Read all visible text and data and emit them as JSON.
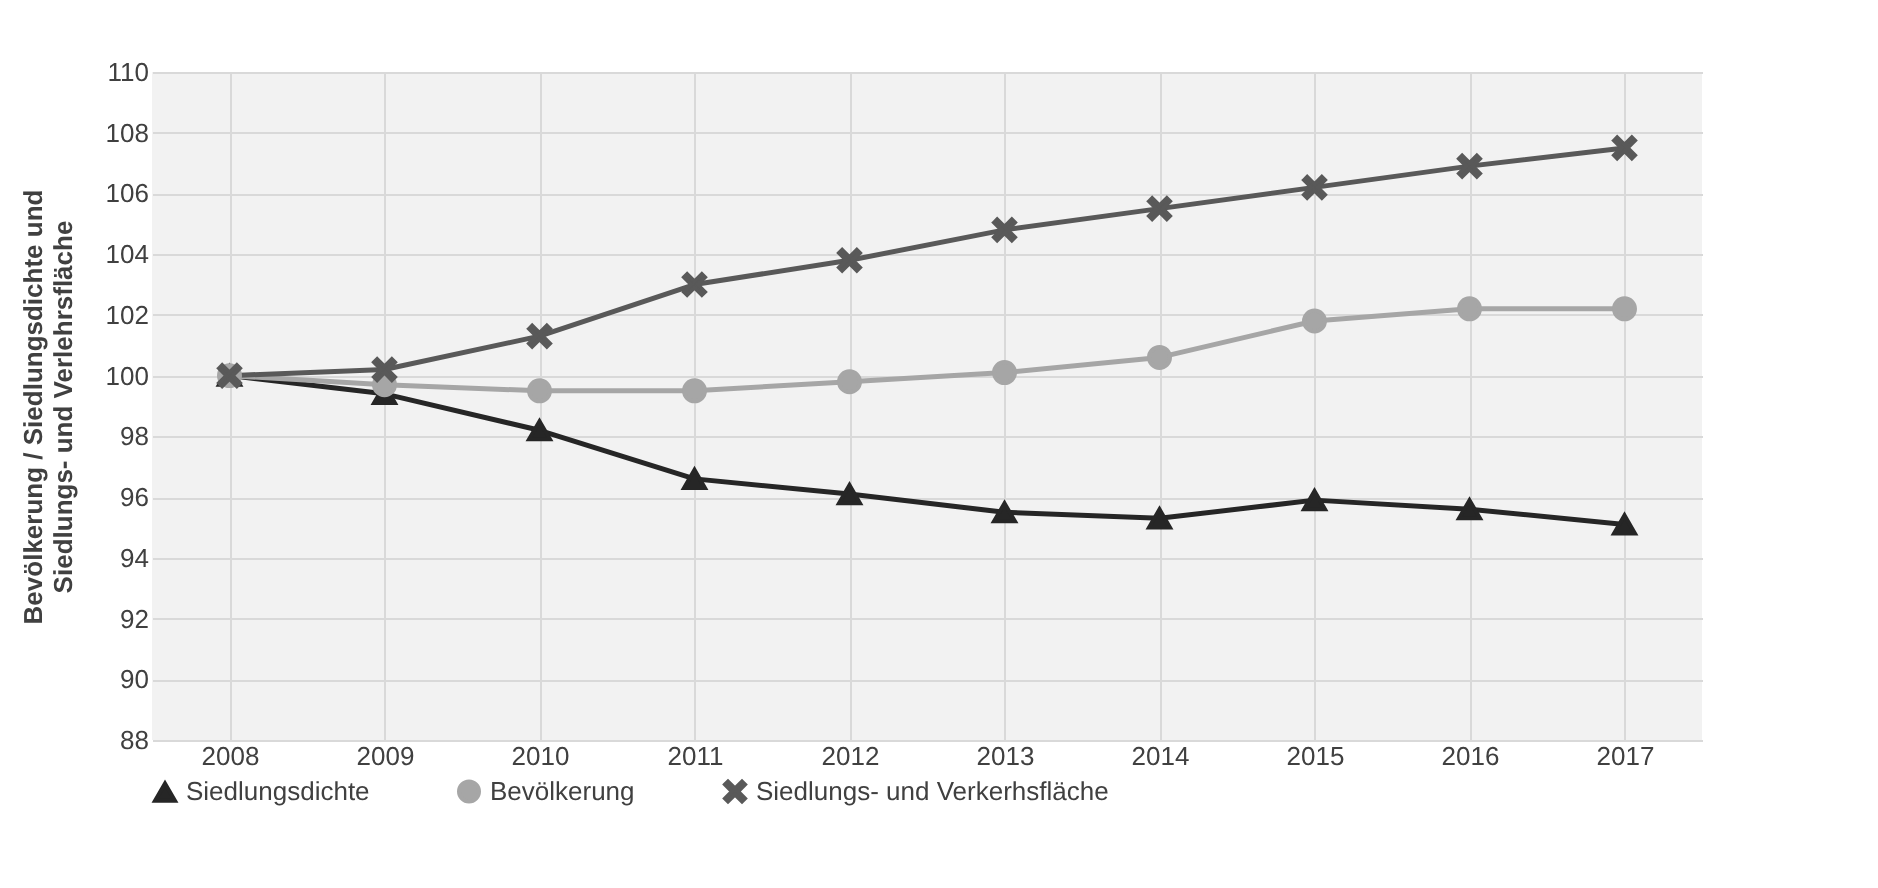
{
  "chart_data": {
    "type": "line",
    "ylabel": "Bevölkerung / Siedlungsdichte und\nSiedlungs- und Verlehrsfläche",
    "categories": [
      "2008",
      "2009",
      "2010",
      "2011",
      "2012",
      "2013",
      "2014",
      "2015",
      "2016",
      "2017"
    ],
    "series": [
      {
        "name": "Siedlungsdichte",
        "color": "#262626",
        "marker": "triangle",
        "values": [
          100,
          99.4,
          98.2,
          96.6,
          96.1,
          95.5,
          95.3,
          95.9,
          95.6,
          95.1
        ]
      },
      {
        "name": "Bevölkerung",
        "color": "#a6a6a6",
        "marker": "circle",
        "values": [
          100,
          99.7,
          99.5,
          99.5,
          99.8,
          100.1,
          100.6,
          101.8,
          102.2,
          102.2
        ]
      },
      {
        "name": "Siedlungs- und Verkerhsfläche",
        "color": "#595959",
        "marker": "cross",
        "values": [
          100,
          100.2,
          101.3,
          103.0,
          103.8,
          104.8,
          105.5,
          106.2,
          106.9,
          107.5
        ]
      }
    ],
    "ylim": [
      88,
      110
    ],
    "yticks": [
      88,
      90,
      92,
      94,
      96,
      98,
      100,
      102,
      104,
      106,
      108,
      110
    ],
    "grid": true,
    "legend": "bottom"
  }
}
